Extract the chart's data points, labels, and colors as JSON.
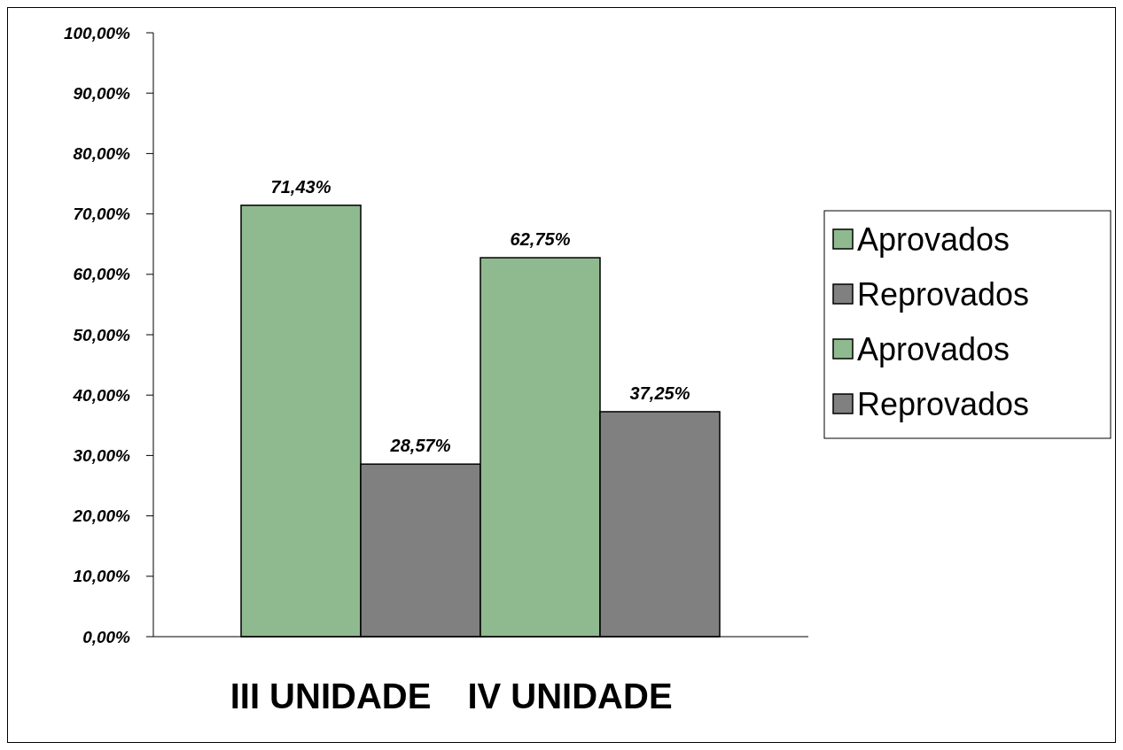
{
  "chart_data": {
    "type": "bar",
    "categories": [
      "III UNIDADE",
      "IV UNIDADE"
    ],
    "series": [
      {
        "name": "Aprovados",
        "color": "#8fba8f",
        "values": [
          71.43,
          null
        ],
        "value_labels": [
          "71,43%",
          null
        ]
      },
      {
        "name": "Reprovados",
        "color": "#808080",
        "values": [
          28.57,
          null
        ],
        "value_labels": [
          "28,57%",
          null
        ]
      },
      {
        "name": "Aprovados",
        "color": "#8fba8f",
        "values": [
          null,
          62.75
        ],
        "value_labels": [
          null,
          "62,75%"
        ]
      },
      {
        "name": "Reprovados",
        "color": "#808080",
        "values": [
          null,
          37.25
        ],
        "value_labels": [
          null,
          "37,25%"
        ]
      }
    ],
    "ylim": [
      0,
      100
    ],
    "yticks": [
      {
        "value": 0,
        "label": "0,00%"
      },
      {
        "value": 10,
        "label": "10,00%"
      },
      {
        "value": 20,
        "label": "20,00%"
      },
      {
        "value": 30,
        "label": "30,00%"
      },
      {
        "value": 40,
        "label": "40,00%"
      },
      {
        "value": 50,
        "label": "50,00%"
      },
      {
        "value": 60,
        "label": "60,00%"
      },
      {
        "value": 70,
        "label": "70,00%"
      },
      {
        "value": 80,
        "label": "80,00%"
      },
      {
        "value": 90,
        "label": "90,00%"
      },
      {
        "value": 100,
        "label": "100,00%"
      }
    ],
    "grid": false,
    "legend": "right"
  }
}
